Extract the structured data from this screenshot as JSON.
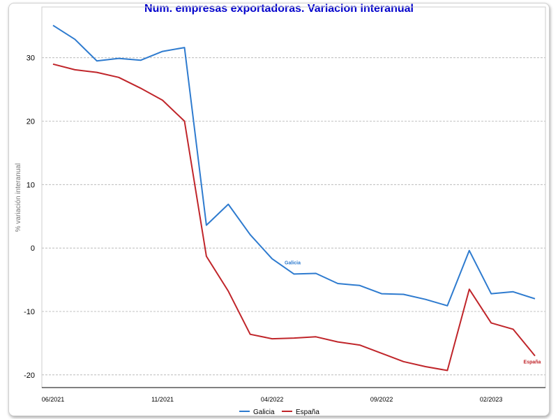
{
  "chart_data": {
    "type": "line",
    "title": "Num. empresas exportadoras. Variacion interanual",
    "xlabel": "",
    "ylabel": "% variación interanual",
    "ylim": [
      -22,
      38
    ],
    "yticks": [
      30,
      20,
      10,
      0,
      -10,
      -20
    ],
    "x_tick_labels": [
      "06/2021",
      "11/2021",
      "04/2022",
      "09/2022",
      "02/2023"
    ],
    "x_tick_indices": [
      0,
      5,
      10,
      15,
      20
    ],
    "grid": true,
    "legend_position": "bottom",
    "series": [
      {
        "name": "Galicia",
        "color": "#2e7bcf",
        "values": [
          35.1,
          32.9,
          29.5,
          29.9,
          29.6,
          31.0,
          31.6,
          3.6,
          6.9,
          2.1,
          -1.7,
          -4.1,
          -4.0,
          -5.6,
          -5.9,
          -7.2,
          -7.3,
          -8.1,
          -9.1,
          -0.4,
          -7.2,
          -6.9,
          -8.0
        ],
        "label": "Galicia",
        "label_index": 11
      },
      {
        "name": "España",
        "color": "#c0252a",
        "values": [
          29.0,
          28.1,
          27.7,
          26.9,
          25.2,
          23.3,
          20.0,
          -1.3,
          -6.8,
          -13.6,
          -14.3,
          -14.2,
          -14.0,
          -14.8,
          -15.3,
          -16.6,
          -17.9,
          -18.7,
          -19.3,
          -6.5,
          -11.8,
          -12.8,
          -17.0
        ],
        "label": "España",
        "label_index": 22
      }
    ]
  },
  "legend": {
    "items": [
      {
        "label": "Galicia",
        "color": "#2e7bcf"
      },
      {
        "label": "España",
        "color": "#c0252a"
      }
    ]
  }
}
